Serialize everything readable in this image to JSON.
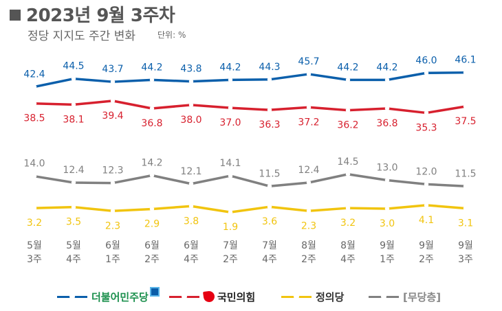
{
  "header": {
    "title": "2023년 9월 3주차",
    "subtitle": "정당 지지도 주간 변화",
    "unit": "단위: %"
  },
  "chart_data": {
    "type": "line",
    "categories": [
      {
        "month": "5월",
        "week": "3주"
      },
      {
        "month": "5월",
        "week": "4주"
      },
      {
        "month": "6월",
        "week": "1주"
      },
      {
        "month": "6월",
        "week": "2주"
      },
      {
        "month": "6월",
        "week": "4주"
      },
      {
        "month": "7월",
        "week": "2주"
      },
      {
        "month": "7월",
        "week": "4주"
      },
      {
        "month": "8월",
        "week": "2주"
      },
      {
        "month": "8월",
        "week": "4주"
      },
      {
        "month": "9월",
        "week": "1주"
      },
      {
        "month": "9월",
        "week": "2주"
      },
      {
        "month": "9월",
        "week": "3주"
      }
    ],
    "series": [
      {
        "name": "더불어민주당",
        "color": "#0b5fab",
        "labels_above": true,
        "values": [
          42.4,
          44.5,
          43.7,
          44.2,
          43.8,
          44.2,
          44.3,
          45.7,
          44.2,
          44.2,
          46.0,
          46.1
        ]
      },
      {
        "name": "국민의힘",
        "color": "#d7202e",
        "labels_above": false,
        "values": [
          38.5,
          38.1,
          39.4,
          36.8,
          38.0,
          37.0,
          36.3,
          37.2,
          36.2,
          36.8,
          35.3,
          37.5
        ]
      },
      {
        "name": "무당층",
        "color": "#808080",
        "labels_above": true,
        "values": [
          14.0,
          12.4,
          12.3,
          14.2,
          12.1,
          14.1,
          11.5,
          12.4,
          14.5,
          13.0,
          12.0,
          11.5
        ]
      },
      {
        "name": "정의당",
        "color": "#f1c40f",
        "labels_above": false,
        "values": [
          3.2,
          3.5,
          2.3,
          2.9,
          3.8,
          1.9,
          3.6,
          2.3,
          3.2,
          3.0,
          4.1,
          3.1
        ]
      }
    ],
    "legend": [
      {
        "label": "더불어민주당",
        "color": "#0b5fab"
      },
      {
        "label": "국민의힘",
        "color": "#d7202e"
      },
      {
        "label": "정의당",
        "color": "#f1c40f"
      },
      {
        "label": "[무당층]",
        "color": "#808080"
      }
    ],
    "legend_position": "bottom",
    "grid": false
  }
}
